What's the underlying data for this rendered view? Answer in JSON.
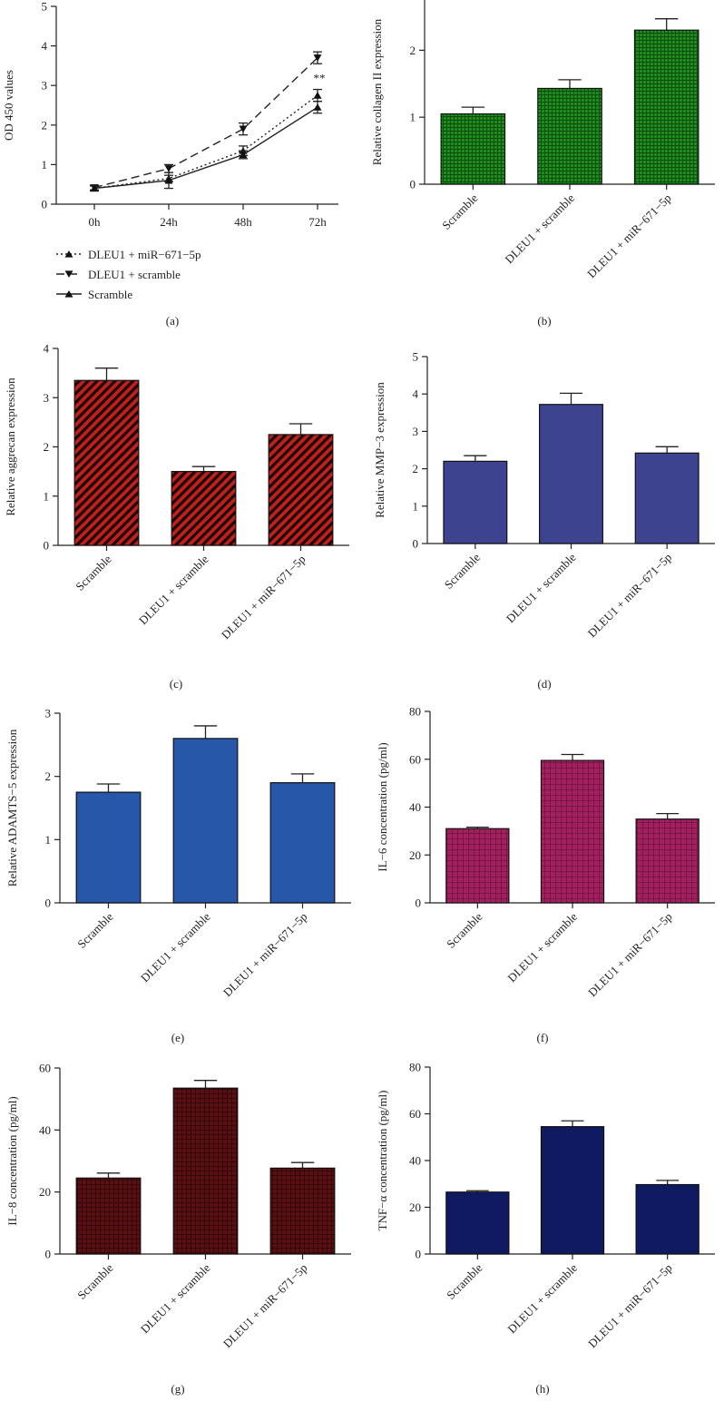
{
  "colors": {
    "b": "#1f8a1f",
    "c": "#c0201c",
    "d": "#3e4390",
    "e": "#2757a9",
    "f": "#a3205f",
    "g": "#5a0f12",
    "h": "#0f1a60"
  },
  "chart_data": [
    {
      "panel": "a",
      "panel_label": "(a)",
      "type": "line",
      "ylabel": "OD 450 values",
      "x": [
        "0h",
        "24h",
        "48h",
        "72h"
      ],
      "ylim": [
        0,
        5
      ],
      "yticks": [
        "0",
        "1",
        "2",
        "3",
        "4",
        "5"
      ],
      "series": [
        {
          "name": "DLEU1 + miR−671−5p",
          "style": "dotted",
          "marker": "triangle-up",
          "values": [
            0.4,
            0.65,
            1.35,
            2.75
          ],
          "errors": [
            0.06,
            0.08,
            0.12,
            0.15
          ]
        },
        {
          "name": "DLEU1 + scramble",
          "style": "dashed",
          "marker": "triangle-down",
          "values": [
            0.42,
            0.9,
            1.9,
            3.7
          ],
          "errors": [
            0.06,
            0.1,
            0.15,
            0.15
          ]
        },
        {
          "name": "Scramble",
          "style": "solid",
          "marker": "triangle-up",
          "values": [
            0.4,
            0.6,
            1.25,
            2.45
          ],
          "errors": [
            0.06,
            0.2,
            0.1,
            0.15
          ]
        }
      ],
      "annotation": "**"
    },
    {
      "panel": "b",
      "panel_label": "(b)",
      "type": "bar",
      "ylabel": "Relative collagen II expression",
      "categories": [
        "Scramble",
        "DLEU1 + scramble",
        "DLEU1 + miR−671−5p"
      ],
      "values": [
        1.05,
        1.43,
        2.3
      ],
      "errors": [
        0.1,
        0.13,
        0.17
      ],
      "ylim": [
        0,
        2.75
      ],
      "yticks": [
        "0",
        "1",
        "2"
      ],
      "fill": "b"
    },
    {
      "panel": "c",
      "panel_label": "(c)",
      "type": "bar",
      "ylabel": "Relative aggrecan expression",
      "categories": [
        "Scramble",
        "DLEU1 + scramble",
        "DLEU1 + miR−671−5p"
      ],
      "values": [
        3.35,
        1.5,
        2.25
      ],
      "errors": [
        0.25,
        0.1,
        0.22
      ],
      "ylim": [
        0,
        4
      ],
      "yticks": [
        "0",
        "1",
        "2",
        "3",
        "4"
      ],
      "fill": "c"
    },
    {
      "panel": "d",
      "panel_label": "(d)",
      "type": "bar",
      "ylabel": "Relative MMP−3 expression",
      "categories": [
        "Scramble",
        "DLEU1 + scramble",
        "DLEU1 + miR−671−5p"
      ],
      "values": [
        2.2,
        3.72,
        2.42
      ],
      "errors": [
        0.15,
        0.3,
        0.17
      ],
      "ylim": [
        0,
        5
      ],
      "yticks": [
        "0",
        "1",
        "2",
        "3",
        "4",
        "5"
      ],
      "fill": "d"
    },
    {
      "panel": "e",
      "panel_label": "(e)",
      "type": "bar",
      "ylabel": "Relative ADAMTS−5 expression",
      "categories": [
        "Scramble",
        "DLEU1 + scramble",
        "DLEU1 + miR−671−5p"
      ],
      "values": [
        1.75,
        2.6,
        1.9
      ],
      "errors": [
        0.13,
        0.2,
        0.14
      ],
      "ylim": [
        0,
        3
      ],
      "yticks": [
        "0",
        "1",
        "2",
        "3"
      ],
      "fill": "e"
    },
    {
      "panel": "f",
      "panel_label": "(f)",
      "type": "bar",
      "ylabel": "IL−6 concentration (pg/ml)",
      "categories": [
        "Scramble",
        "DLEU1 + scramble",
        "DLEU1 + miR−671−5p"
      ],
      "values": [
        31,
        59.5,
        35
      ],
      "errors": [
        0.6,
        2.5,
        2.3
      ],
      "ylim": [
        0,
        80
      ],
      "yticks": [
        "0",
        "20",
        "40",
        "60",
        "80"
      ],
      "fill": "f"
    },
    {
      "panel": "g",
      "panel_label": "(g)",
      "type": "bar",
      "ylabel": "IL−8 concentration (pg/ml)",
      "categories": [
        "Scramble",
        "DLEU1 + scramble",
        "DLEU1 + miR−671−5p"
      ],
      "values": [
        24.5,
        53.5,
        27.7
      ],
      "errors": [
        1.6,
        2.5,
        1.8
      ],
      "ylim": [
        0,
        60
      ],
      "yticks": [
        "0",
        "20",
        "40",
        "60"
      ],
      "fill": "g"
    },
    {
      "panel": "h",
      "panel_label": "(h)",
      "type": "bar",
      "ylabel": "TNF−α concentration (pg/ml)",
      "categories": [
        "Scramble",
        "DLEU1 + scramble",
        "DLEU1 + miR−671−5p"
      ],
      "values": [
        26.5,
        54.5,
        29.7
      ],
      "errors": [
        0.6,
        2.5,
        1.8
      ],
      "ylim": [
        0,
        80
      ],
      "yticks": [
        "0",
        "20",
        "40",
        "60",
        "80"
      ],
      "fill": "h"
    }
  ]
}
